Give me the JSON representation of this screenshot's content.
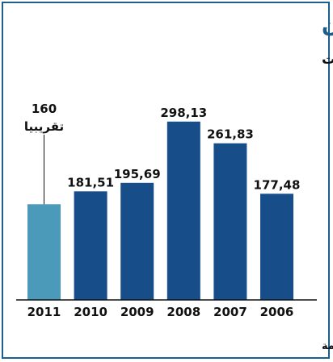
{
  "chart_data": {
    "type": "bar",
    "title": "الفائض التجاري في الصين",
    "subtitle": "بمليارات الدولارات",
    "categories": [
      "2006",
      "2007",
      "2008",
      "2009",
      "2010",
      "2011"
    ],
    "value_labels": [
      "177,48",
      "261,83",
      "298,13",
      "195,69",
      "181,51",
      "160"
    ],
    "values": [
      177.48,
      261.83,
      298.13,
      195.69,
      181.51,
      160
    ],
    "estimate_note": "تقريبيا",
    "estimated_index": 5,
    "ylim": [
      0,
      310
    ],
    "grid": false,
    "legend": "none"
  },
  "colors": {
    "bar": "#174e8a",
    "bar_estimate": "#4c9ab9",
    "title": "#1c5e8c",
    "frame": "#1c5e8c"
  },
  "source": "المصدر: الحكومة"
}
